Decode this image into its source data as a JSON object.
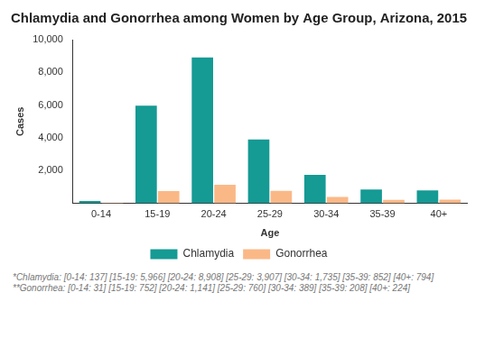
{
  "chart_data": {
    "type": "bar",
    "title": "Chlamydia and Gonorrhea among Women by Age Group, Arizona, 2015",
    "x_label": "Age",
    "y_label": "Cases",
    "categories": [
      "0-14",
      "15-19",
      "20-24",
      "25-29",
      "30-34",
      "35-39",
      "40+"
    ],
    "series": [
      {
        "name": "Chlamydia",
        "color": "#159a94",
        "values": [
          137,
          5966,
          8908,
          3907,
          1735,
          852,
          794
        ]
      },
      {
        "name": "Gonorrhea",
        "color": "#fbb887",
        "values": [
          31,
          752,
          1141,
          760,
          389,
          208,
          224
        ]
      }
    ],
    "ylim": [
      0,
      10000
    ],
    "yticks": [
      {
        "value": 2000,
        "label": "2,000"
      },
      {
        "value": 4000,
        "label": "4,000"
      },
      {
        "value": 6000,
        "label": "6,000"
      },
      {
        "value": 8000,
        "label": "8,000"
      },
      {
        "value": 10000,
        "label": "10,000"
      }
    ],
    "grid": false,
    "legend": "bottom",
    "annotations": [
      "*Chlamydia: [0-14: 137] [15-19: 5,966] [20-24: 8,908] [25-29: 3,907] [30-34: 1,735] [35-39: 852] [40+: 794]",
      "**Gonorrhea: [0-14: 31] [15-19: 752] [20-24: 1,141] [25-29: 760] [30-34: 389] [35-39: 208] [40+: 224]"
    ]
  }
}
